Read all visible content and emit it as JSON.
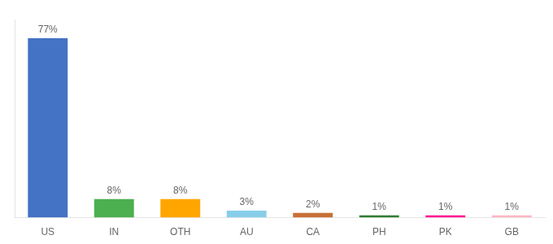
{
  "chart_data": {
    "type": "bar",
    "categories": [
      "US",
      "IN",
      "OTH",
      "AU",
      "CA",
      "PH",
      "PK",
      "GB"
    ],
    "values": [
      77,
      8,
      8,
      3,
      2,
      1,
      1,
      1
    ],
    "value_labels": [
      "77%",
      "8%",
      "8%",
      "3%",
      "2%",
      "1%",
      "1%",
      "1%"
    ],
    "colors": [
      "#4472c4",
      "#4caf50",
      "#ffa500",
      "#87ceeb",
      "#c87137",
      "#2e7d32",
      "#ff1493",
      "#ffb6c1"
    ],
    "ylim": [
      0,
      85
    ],
    "grid": false,
    "legend": false,
    "data_labels": true,
    "tick_labels": "x"
  }
}
